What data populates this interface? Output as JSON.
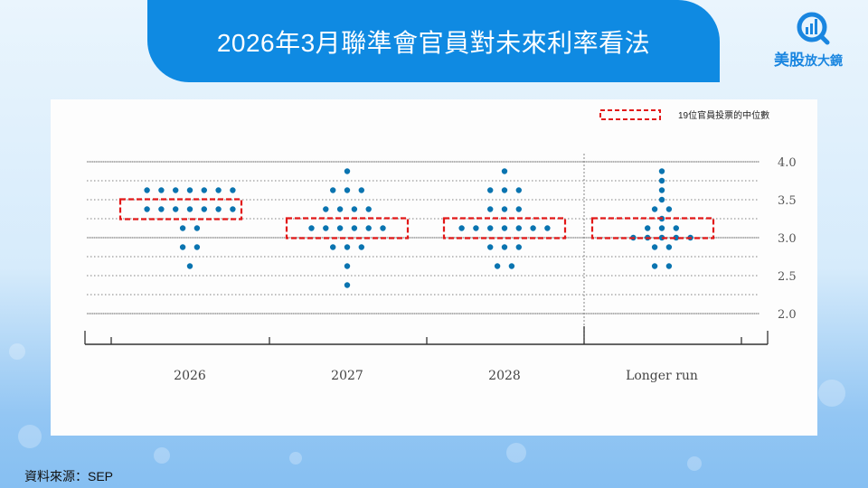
{
  "header": {
    "title": "2026年3月聯準會官員對未來利率看法"
  },
  "logo": {
    "brand": "美股",
    "suffix": "放大鏡",
    "icon": "magnifier-bar-chart-icon"
  },
  "footer": {
    "source": "資料來源：SEP"
  },
  "colors": {
    "dot": "#0a74b0",
    "median_box": "#e21818",
    "title_bg": "#0f8ae2",
    "brand": "#1a86e0"
  },
  "chart_data": {
    "type": "scatter",
    "subtype": "dot-plot",
    "title": "2026年3月聯準會官員對未來利率看法",
    "categories": [
      "2026",
      "2027",
      "2028",
      "Longer run"
    ],
    "ylabel": "",
    "xlabel": "",
    "ylim": [
      1.6,
      4.2
    ],
    "yticks": [
      2.0,
      2.5,
      3.0,
      3.5,
      4.0
    ],
    "ytick_labels": [
      "2.0",
      "2.5",
      "3.0",
      "3.5",
      "4.0"
    ],
    "grid": true,
    "legend": {
      "label": "19位官員投票的中位數",
      "position": "top-right",
      "marker": "red-dashed-box"
    },
    "series": [
      {
        "name": "2026",
        "points": [
          {
            "rate": 3.625,
            "count": 7
          },
          {
            "rate": 3.375,
            "count": 7
          },
          {
            "rate": 3.125,
            "count": 2
          },
          {
            "rate": 2.875,
            "count": 2
          },
          {
            "rate": 2.625,
            "count": 1
          }
        ],
        "median": 3.375
      },
      {
        "name": "2027",
        "points": [
          {
            "rate": 3.875,
            "count": 1
          },
          {
            "rate": 3.625,
            "count": 3
          },
          {
            "rate": 3.375,
            "count": 4
          },
          {
            "rate": 3.125,
            "count": 6
          },
          {
            "rate": 2.875,
            "count": 3
          },
          {
            "rate": 2.625,
            "count": 1
          },
          {
            "rate": 2.375,
            "count": 1
          }
        ],
        "median": 3.125
      },
      {
        "name": "2028",
        "points": [
          {
            "rate": 3.875,
            "count": 1
          },
          {
            "rate": 3.625,
            "count": 3
          },
          {
            "rate": 3.375,
            "count": 3
          },
          {
            "rate": 3.125,
            "count": 7
          },
          {
            "rate": 2.875,
            "count": 3
          },
          {
            "rate": 2.625,
            "count": 2
          }
        ],
        "median": 3.125
      },
      {
        "name": "Longer run",
        "points": [
          {
            "rate": 3.875,
            "count": 1
          },
          {
            "rate": 3.75,
            "count": 1
          },
          {
            "rate": 3.625,
            "count": 1
          },
          {
            "rate": 3.5,
            "count": 1
          },
          {
            "rate": 3.375,
            "count": 2
          },
          {
            "rate": 3.25,
            "count": 1
          },
          {
            "rate": 3.125,
            "count": 3
          },
          {
            "rate": 3.0,
            "count": 5
          },
          {
            "rate": 2.875,
            "count": 2
          },
          {
            "rate": 2.625,
            "count": 2
          }
        ],
        "median": 3.125
      }
    ]
  }
}
